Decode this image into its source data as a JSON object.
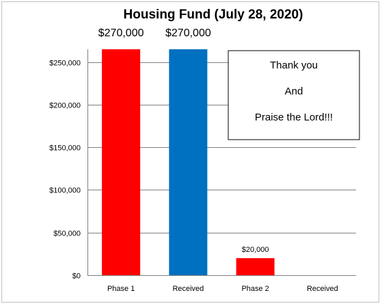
{
  "chart_data": {
    "type": "bar",
    "title": "Housing Fund (July 28, 2020)",
    "xlabel": "",
    "ylabel": "",
    "categories": [
      "Phase 1",
      "Received",
      "Phase 2",
      "Received"
    ],
    "values": [
      270000,
      270000,
      20000,
      0
    ],
    "data_labels": [
      "$270,000",
      "$270,000",
      "$20,000",
      ""
    ],
    "colors": [
      "#ff0000",
      "#0070c0",
      "#ff0000",
      "#ff0000"
    ],
    "ylim": [
      0,
      265000
    ],
    "yticks": [
      0,
      50000,
      100000,
      150000,
      200000,
      250000
    ],
    "ytick_labels": [
      "$0",
      "$50,000",
      "$100,000",
      "$150,000",
      "$200,000",
      "$250,000"
    ],
    "grid": true,
    "gridline_color": "#808080",
    "legend": "none"
  },
  "annotation": {
    "lines": [
      "Thank you",
      "And",
      "Praise the Lord!!!"
    ]
  }
}
